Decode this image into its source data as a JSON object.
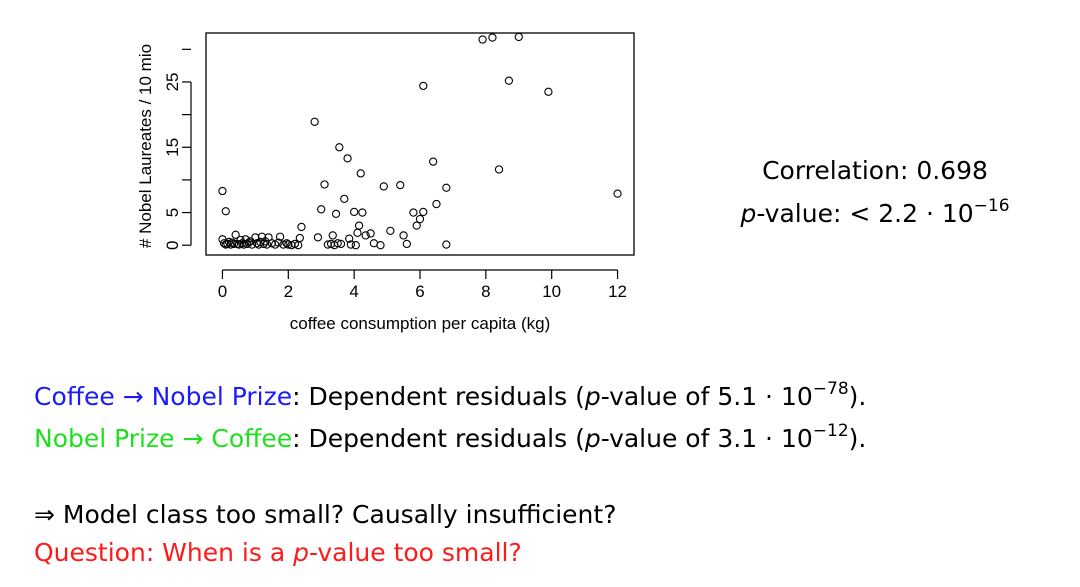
{
  "chart_data": {
    "type": "scatter",
    "xlabel": "coffee consumption per capita (kg)",
    "ylabel": "# Nobel Laureates / 10 mio",
    "xlim": [
      -0.5,
      12.5
    ],
    "ylim": [
      -1.5,
      32.5
    ],
    "xticks": [
      0,
      2,
      4,
      6,
      8,
      10,
      12
    ],
    "yticks": [
      0,
      5,
      15,
      25
    ],
    "grid": false,
    "marker": "open-circle",
    "points": [
      [
        0.0,
        8.3
      ],
      [
        0.1,
        5.2
      ],
      [
        0.0,
        0.9
      ],
      [
        0.05,
        0.3
      ],
      [
        0.1,
        0.1
      ],
      [
        0.15,
        0.2
      ],
      [
        0.2,
        0.5
      ],
      [
        0.25,
        0.1
      ],
      [
        0.3,
        0.4
      ],
      [
        0.35,
        0.2
      ],
      [
        0.4,
        1.6
      ],
      [
        0.45,
        0.2
      ],
      [
        0.5,
        0.1
      ],
      [
        0.55,
        0.8
      ],
      [
        0.6,
        0.3
      ],
      [
        0.65,
        0.1
      ],
      [
        0.7,
        0.9
      ],
      [
        0.75,
        0.2
      ],
      [
        0.8,
        0.4
      ],
      [
        0.85,
        0.6
      ],
      [
        0.9,
        0.1
      ],
      [
        1.0,
        1.2
      ],
      [
        1.05,
        0.3
      ],
      [
        1.1,
        0.1
      ],
      [
        1.15,
        0.5
      ],
      [
        1.2,
        1.3
      ],
      [
        1.25,
        0.2
      ],
      [
        1.3,
        0.6
      ],
      [
        1.35,
        0.1
      ],
      [
        1.4,
        1.2
      ],
      [
        1.5,
        0.3
      ],
      [
        1.6,
        0.1
      ],
      [
        1.7,
        0.4
      ],
      [
        1.75,
        1.3
      ],
      [
        1.85,
        0.1
      ],
      [
        1.95,
        0.3
      ],
      [
        2.0,
        0.1
      ],
      [
        2.1,
        0.0
      ],
      [
        2.2,
        0.2
      ],
      [
        2.3,
        0.0
      ],
      [
        2.35,
        1.1
      ],
      [
        2.4,
        2.8
      ],
      [
        2.8,
        18.9
      ],
      [
        2.9,
        1.2
      ],
      [
        3.0,
        5.5
      ],
      [
        3.1,
        9.3
      ],
      [
        3.2,
        0.1
      ],
      [
        3.3,
        0.2
      ],
      [
        3.35,
        1.5
      ],
      [
        3.4,
        0.0
      ],
      [
        3.45,
        4.8
      ],
      [
        3.5,
        0.3
      ],
      [
        3.55,
        15.0
      ],
      [
        3.6,
        0.2
      ],
      [
        3.7,
        7.1
      ],
      [
        3.8,
        13.3
      ],
      [
        3.85,
        1.0
      ],
      [
        3.9,
        0.1
      ],
      [
        4.0,
        5.1
      ],
      [
        4.05,
        0.0
      ],
      [
        4.1,
        1.9
      ],
      [
        4.15,
        3.0
      ],
      [
        4.2,
        11.0
      ],
      [
        4.25,
        5.0
      ],
      [
        4.35,
        1.5
      ],
      [
        4.5,
        1.8
      ],
      [
        4.6,
        0.3
      ],
      [
        4.8,
        0.0
      ],
      [
        4.9,
        9.0
      ],
      [
        5.1,
        2.2
      ],
      [
        5.4,
        9.2
      ],
      [
        5.5,
        1.5
      ],
      [
        5.6,
        0.2
      ],
      [
        5.8,
        5.0
      ],
      [
        5.9,
        3.0
      ],
      [
        6.0,
        4.0
      ],
      [
        6.1,
        5.1
      ],
      [
        6.1,
        24.4
      ],
      [
        6.4,
        12.8
      ],
      [
        6.5,
        6.3
      ],
      [
        6.8,
        8.8
      ],
      [
        6.8,
        0.1
      ],
      [
        7.9,
        31.5
      ],
      [
        8.2,
        31.8
      ],
      [
        8.4,
        11.6
      ],
      [
        8.7,
        25.2
      ],
      [
        9.0,
        31.9
      ],
      [
        9.9,
        23.5
      ],
      [
        12.0,
        7.9
      ]
    ]
  },
  "stats": {
    "correlation_label": "Correlation:",
    "correlation_value": "0.698",
    "pvalue_p": "p",
    "pvalue_label": "-value:",
    "pvalue_value": "< 2.2 · 10",
    "pvalue_exp": "−16"
  },
  "lines": {
    "line1": {
      "a": "Coffee",
      "arrow": " → ",
      "b": "Nobel Prize",
      "rest1": ": Dependent residuals (",
      "p": "p",
      "rest2": "-value of 5.1 · 10",
      "exp": "−78",
      "end": ")."
    },
    "line2": {
      "a": "Nobel Prize",
      "arrow": " → ",
      "b": "Coffee",
      "rest1": ": Dependent residuals (",
      "p": "p",
      "rest2": "-value of 3.1 · 10",
      "exp": "−12",
      "end": ")."
    },
    "line3": "⇒ Model class too small? Causally insufficient?",
    "question_pre": "Question: When is a ",
    "question_p": "p",
    "question_post": "-value too small?"
  }
}
